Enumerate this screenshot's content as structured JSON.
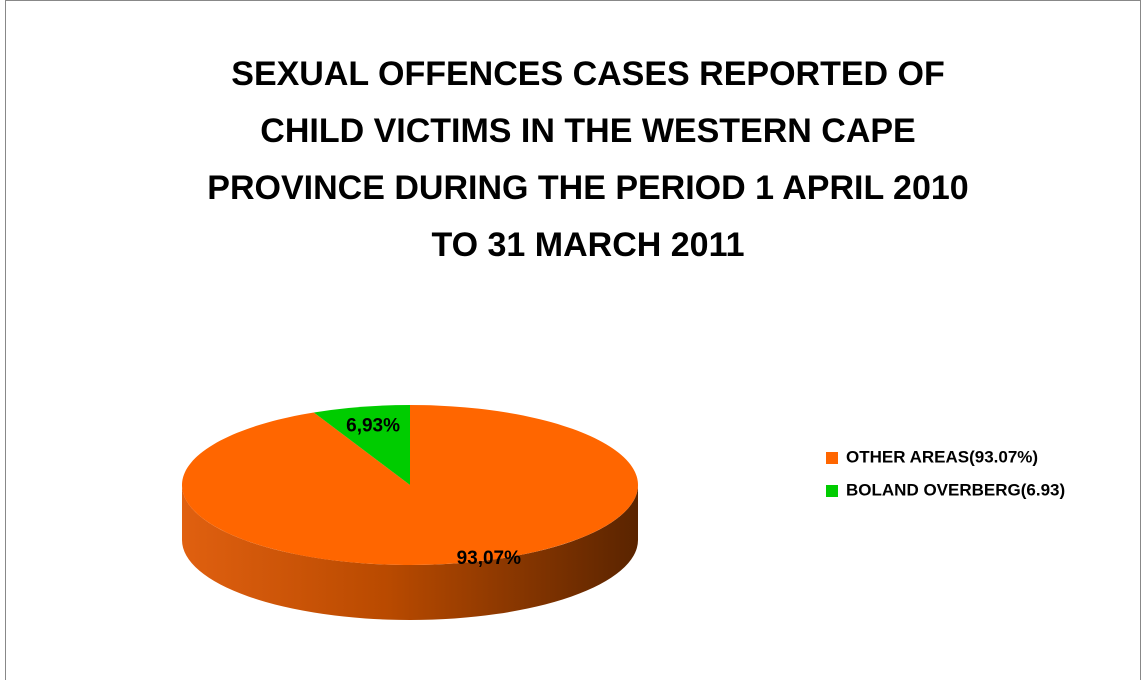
{
  "chart_data": {
    "type": "pie",
    "title": [
      "SEXUAL OFFENCES CASES REPORTED OF",
      "CHILD VICTIMS IN THE WESTERN CAPE",
      "PROVINCE DURING THE PERIOD 1 APRIL 2010",
      "TO  31 MARCH 2011"
    ],
    "categories": [
      "OTHER AREAS(93.07%)",
      "BOLAND OVERBERG(6.93)"
    ],
    "values": [
      93.07,
      6.93
    ],
    "value_labels": [
      "93,07%",
      "6,93%"
    ],
    "colors": [
      "#ff6600",
      "#00cc00"
    ],
    "legend": "right"
  }
}
